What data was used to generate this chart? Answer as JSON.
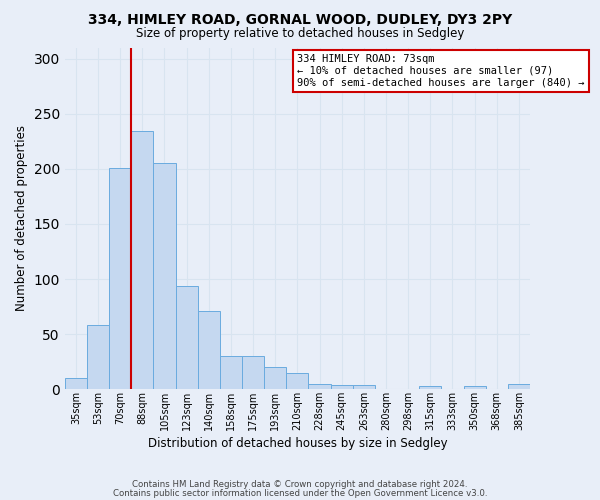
{
  "title_line1": "334, HIMLEY ROAD, GORNAL WOOD, DUDLEY, DY3 2PY",
  "title_line2": "Size of property relative to detached houses in Sedgley",
  "xlabel": "Distribution of detached houses by size in Sedgley",
  "ylabel": "Number of detached properties",
  "categories": [
    "35sqm",
    "53sqm",
    "70sqm",
    "88sqm",
    "105sqm",
    "123sqm",
    "140sqm",
    "158sqm",
    "175sqm",
    "193sqm",
    "210sqm",
    "228sqm",
    "245sqm",
    "263sqm",
    "280sqm",
    "298sqm",
    "315sqm",
    "333sqm",
    "350sqm",
    "368sqm",
    "385sqm"
  ],
  "values": [
    10,
    58,
    201,
    234,
    205,
    94,
    71,
    30,
    30,
    20,
    15,
    5,
    4,
    4,
    0,
    0,
    3,
    0,
    3,
    0,
    5
  ],
  "bar_color": "#c5d8f0",
  "bar_edge_color": "#6aabdf",
  "ylim_max": 310,
  "yticks": [
    0,
    50,
    100,
    150,
    200,
    250,
    300
  ],
  "vline_color": "#cc0000",
  "vline_x": 2.5,
  "annotation_line1": "334 HIMLEY ROAD: 73sqm",
  "annotation_line2": "← 10% of detached houses are smaller (97)",
  "annotation_line3": "90% of semi-detached houses are larger (840) →",
  "annotation_box_facecolor": "#ffffff",
  "annotation_box_edgecolor": "#cc0000",
  "background_color": "#e8eef8",
  "grid_color": "#d8e4f0",
  "footer_line1": "Contains HM Land Registry data © Crown copyright and database right 2024.",
  "footer_line2": "Contains public sector information licensed under the Open Government Licence v3.0."
}
